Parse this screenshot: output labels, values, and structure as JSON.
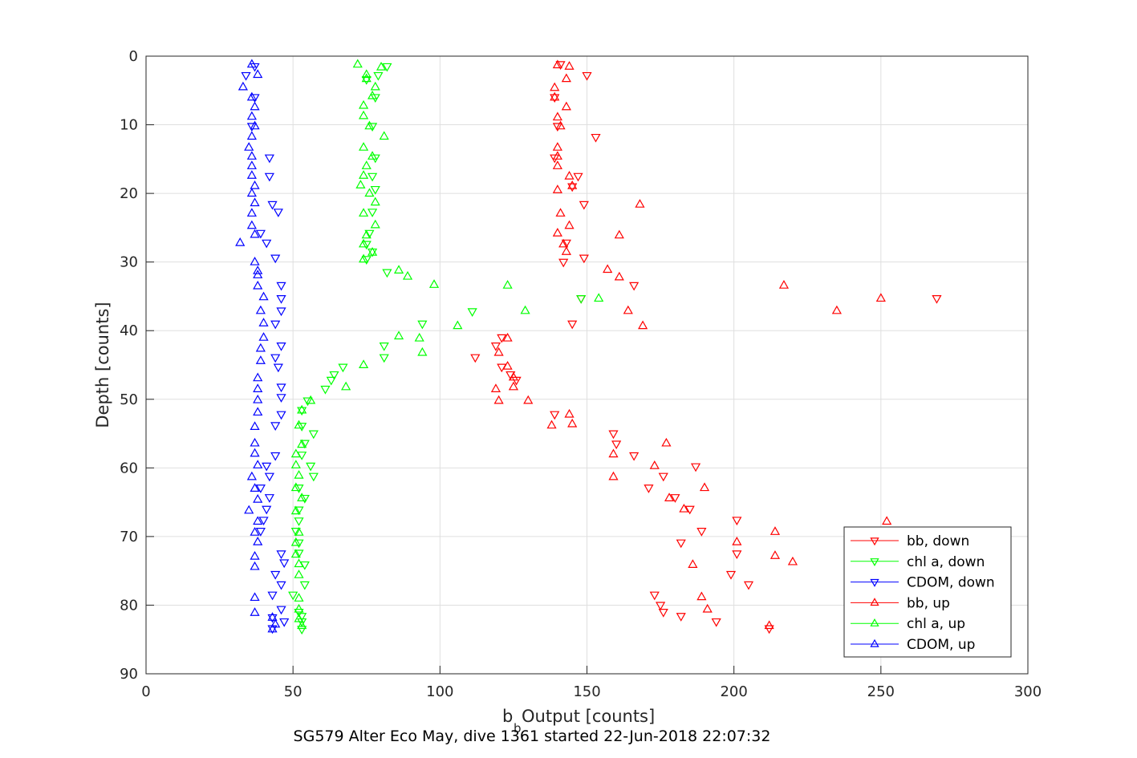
{
  "chart_data": {
    "type": "scatter",
    "title": "SG579 Alter Eco May, dive 1361 started 22-Jun-2018 22:07:32",
    "xlabel_main": "b",
    "xlabel_sub": "b",
    "xlabel_rest": " Output [counts]",
    "ylabel": "Depth [counts]",
    "xlim": [
      0,
      300
    ],
    "ylim": [
      0,
      90
    ],
    "y_reversed": true,
    "grid": true,
    "legend_placement": "bottom-right",
    "xticks": [
      "0",
      "50",
      "100",
      "150",
      "200",
      "250",
      "300"
    ],
    "yticks": [
      "0",
      "10",
      "20",
      "30",
      "40",
      "50",
      "60",
      "70",
      "80",
      "90"
    ],
    "series": [
      {
        "name": "bb, down",
        "color": "#ff0000",
        "marker": "triangle-down",
        "points": [
          [
            141,
            1.2
          ],
          [
            150,
            2.8
          ],
          [
            139,
            6.0
          ],
          [
            140,
            10.2
          ],
          [
            153,
            11.8
          ],
          [
            139,
            14.8
          ],
          [
            147,
            17.5
          ],
          [
            145,
            19.0
          ],
          [
            149,
            21.6
          ],
          [
            143,
            27.2
          ],
          [
            149,
            29.4
          ],
          [
            142,
            30.0
          ],
          [
            166,
            33.4
          ],
          [
            269,
            35.3
          ],
          [
            148,
            35.3
          ],
          [
            145,
            39.0
          ],
          [
            121,
            41.0
          ],
          [
            119,
            42.2
          ],
          [
            112,
            43.9
          ],
          [
            121,
            45.3
          ],
          [
            124,
            46.4
          ],
          [
            126,
            47.2
          ],
          [
            139,
            52.2
          ],
          [
            159,
            55.0
          ],
          [
            160,
            56.5
          ],
          [
            166,
            58.2
          ],
          [
            187,
            59.8
          ],
          [
            176,
            61.2
          ],
          [
            171,
            62.9
          ],
          [
            180,
            64.3
          ],
          [
            185,
            66.0
          ],
          [
            201,
            67.6
          ],
          [
            189,
            69.2
          ],
          [
            182,
            70.9
          ],
          [
            201,
            72.5
          ],
          [
            199,
            75.5
          ],
          [
            205,
            77.0
          ],
          [
            173,
            78.5
          ],
          [
            175,
            80.0
          ],
          [
            176,
            81.0
          ],
          [
            182,
            81.6
          ],
          [
            194,
            82.4
          ],
          [
            212,
            83.4
          ]
        ]
      },
      {
        "name": "chl a, down",
        "color": "#00ff00",
        "marker": "triangle-down",
        "points": [
          [
            82,
            1.5
          ],
          [
            79,
            2.8
          ],
          [
            75,
            3.4
          ],
          [
            78,
            6.0
          ],
          [
            77,
            10.2
          ],
          [
            78,
            14.8
          ],
          [
            77,
            17.5
          ],
          [
            78,
            19.4
          ],
          [
            77,
            22.7
          ],
          [
            76,
            25.8
          ],
          [
            75,
            27.4
          ],
          [
            77,
            28.5
          ],
          [
            75,
            29.6
          ],
          [
            82,
            31.5
          ],
          [
            148,
            35.3
          ],
          [
            111,
            37.2
          ],
          [
            94,
            39.0
          ],
          [
            81,
            42.2
          ],
          [
            81,
            43.9
          ],
          [
            67,
            45.3
          ],
          [
            64,
            46.4
          ],
          [
            63,
            47.2
          ],
          [
            61,
            48.5
          ],
          [
            55,
            50.2
          ],
          [
            53,
            51.6
          ],
          [
            53,
            53.9
          ],
          [
            57,
            55.0
          ],
          [
            54,
            56.4
          ],
          [
            53,
            58.1
          ],
          [
            56,
            59.7
          ],
          [
            57,
            61.2
          ],
          [
            52,
            62.9
          ],
          [
            54,
            64.4
          ],
          [
            52,
            66.1
          ],
          [
            52,
            67.7
          ],
          [
            51,
            69.2
          ],
          [
            52,
            70.9
          ],
          [
            52,
            72.4
          ],
          [
            54,
            74.1
          ],
          [
            54,
            77.0
          ],
          [
            50,
            78.5
          ],
          [
            52,
            81.0
          ],
          [
            53,
            81.6
          ],
          [
            53,
            82.4
          ],
          [
            53,
            83.5
          ]
        ]
      },
      {
        "name": "CDOM, down",
        "color": "#0000ff",
        "marker": "triangle-down",
        "points": [
          [
            37,
            1.5
          ],
          [
            34,
            2.8
          ],
          [
            37,
            6.0
          ],
          [
            36,
            10.2
          ],
          [
            42,
            14.8
          ],
          [
            42,
            17.5
          ],
          [
            43,
            21.6
          ],
          [
            45,
            22.7
          ],
          [
            39,
            25.8
          ],
          [
            41,
            27.2
          ],
          [
            44,
            29.4
          ],
          [
            46,
            33.4
          ],
          [
            46,
            35.3
          ],
          [
            46,
            37.1
          ],
          [
            44,
            39.0
          ],
          [
            46,
            42.2
          ],
          [
            44,
            43.9
          ],
          [
            45,
            45.3
          ],
          [
            46,
            48.2
          ],
          [
            46,
            49.7
          ],
          [
            46,
            52.2
          ],
          [
            44,
            53.8
          ],
          [
            44,
            58.2
          ],
          [
            41,
            59.7
          ],
          [
            42,
            61.2
          ],
          [
            39,
            62.9
          ],
          [
            42,
            64.3
          ],
          [
            41,
            66.0
          ],
          [
            40,
            67.6
          ],
          [
            39,
            69.2
          ],
          [
            46,
            72.5
          ],
          [
            47,
            73.8
          ],
          [
            44,
            75.5
          ],
          [
            46,
            77.0
          ],
          [
            43,
            78.5
          ],
          [
            46,
            80.6
          ],
          [
            43,
            81.8
          ],
          [
            47,
            82.4
          ],
          [
            43,
            83.4
          ]
        ]
      },
      {
        "name": "bb, up",
        "color": "#ff0000",
        "marker": "triangle-up",
        "points": [
          [
            140,
            1.3
          ],
          [
            144,
            1.5
          ],
          [
            143,
            3.3
          ],
          [
            139,
            4.6
          ],
          [
            139,
            6.0
          ],
          [
            143,
            7.4
          ],
          [
            140,
            8.9
          ],
          [
            141,
            10.2
          ],
          [
            140,
            13.3
          ],
          [
            140,
            14.6
          ],
          [
            140,
            16.0
          ],
          [
            144,
            17.5
          ],
          [
            145,
            18.9
          ],
          [
            140,
            19.5
          ],
          [
            168,
            21.6
          ],
          [
            141,
            22.9
          ],
          [
            144,
            24.7
          ],
          [
            161,
            26.1
          ],
          [
            140,
            25.8
          ],
          [
            142,
            27.4
          ],
          [
            143,
            28.5
          ],
          [
            157,
            31.1
          ],
          [
            161,
            32.2
          ],
          [
            217,
            33.4
          ],
          [
            250,
            35.3
          ],
          [
            235,
            37.1
          ],
          [
            164,
            37.1
          ],
          [
            169,
            39.3
          ],
          [
            123,
            41.1
          ],
          [
            120,
            43.2
          ],
          [
            123,
            45.2
          ],
          [
            125,
            46.8
          ],
          [
            125,
            48.2
          ],
          [
            119,
            48.5
          ],
          [
            120,
            50.2
          ],
          [
            130,
            50.2
          ],
          [
            144,
            52.2
          ],
          [
            145,
            53.6
          ],
          [
            138,
            53.8
          ],
          [
            177,
            56.4
          ],
          [
            159,
            58.0
          ],
          [
            173,
            59.7
          ],
          [
            159,
            61.3
          ],
          [
            190,
            62.9
          ],
          [
            178,
            64.4
          ],
          [
            183,
            66.0
          ],
          [
            252,
            67.8
          ],
          [
            214,
            69.3
          ],
          [
            201,
            70.8
          ],
          [
            214,
            72.8
          ],
          [
            186,
            74.1
          ],
          [
            220,
            73.7
          ],
          [
            189,
            78.8
          ],
          [
            191,
            80.6
          ],
          [
            212,
            83.0
          ]
        ]
      },
      {
        "name": "chl a, up",
        "color": "#00ff00",
        "marker": "triangle-up",
        "points": [
          [
            72,
            1.2
          ],
          [
            80,
            1.6
          ],
          [
            75,
            2.7
          ],
          [
            75,
            3.3
          ],
          [
            78,
            4.5
          ],
          [
            77,
            5.8
          ],
          [
            74,
            7.2
          ],
          [
            74,
            8.7
          ],
          [
            76,
            10.2
          ],
          [
            81,
            11.7
          ],
          [
            74,
            13.3
          ],
          [
            77,
            14.6
          ],
          [
            75,
            16.0
          ],
          [
            74,
            17.4
          ],
          [
            73,
            18.8
          ],
          [
            76,
            20.0
          ],
          [
            78,
            21.3
          ],
          [
            74,
            22.9
          ],
          [
            78,
            24.6
          ],
          [
            75,
            26.1
          ],
          [
            74,
            27.4
          ],
          [
            77,
            28.6
          ],
          [
            74,
            29.6
          ],
          [
            86,
            31.2
          ],
          [
            89,
            32.1
          ],
          [
            98,
            33.3
          ],
          [
            123,
            33.4
          ],
          [
            154,
            35.3
          ],
          [
            129,
            37.1
          ],
          [
            106,
            39.3
          ],
          [
            93,
            41.1
          ],
          [
            86,
            40.8
          ],
          [
            94,
            43.2
          ],
          [
            74,
            45.0
          ],
          [
            68,
            48.2
          ],
          [
            56,
            50.2
          ],
          [
            53,
            51.6
          ],
          [
            52,
            53.8
          ],
          [
            53,
            56.6
          ],
          [
            51,
            58.0
          ],
          [
            51,
            59.6
          ],
          [
            52,
            61.1
          ],
          [
            51,
            62.9
          ],
          [
            53,
            64.4
          ],
          [
            51,
            66.3
          ],
          [
            52,
            69.4
          ],
          [
            51,
            70.9
          ],
          [
            51,
            72.6
          ],
          [
            52,
            74.0
          ],
          [
            52,
            75.6
          ],
          [
            52,
            79.0
          ],
          [
            52,
            80.6
          ],
          [
            52,
            82.0
          ],
          [
            53,
            83.0
          ]
        ]
      },
      {
        "name": "CDOM, up",
        "color": "#0000ff",
        "marker": "triangle-up",
        "points": [
          [
            36,
            1.2
          ],
          [
            38,
            2.7
          ],
          [
            33,
            4.5
          ],
          [
            36,
            6.0
          ],
          [
            37,
            7.4
          ],
          [
            36,
            8.8
          ],
          [
            37,
            10.2
          ],
          [
            36,
            11.7
          ],
          [
            35,
            13.3
          ],
          [
            36,
            14.6
          ],
          [
            36,
            16.0
          ],
          [
            36,
            17.4
          ],
          [
            37,
            18.9
          ],
          [
            36,
            20.0
          ],
          [
            37,
            21.4
          ],
          [
            36,
            22.9
          ],
          [
            36,
            24.7
          ],
          [
            37,
            26.0
          ],
          [
            32,
            27.2
          ],
          [
            37,
            30.0
          ],
          [
            38,
            31.3
          ],
          [
            38,
            31.9
          ],
          [
            38,
            33.5
          ],
          [
            40,
            35.1
          ],
          [
            39,
            37.1
          ],
          [
            40,
            38.9
          ],
          [
            40,
            41.0
          ],
          [
            39,
            42.6
          ],
          [
            39,
            44.4
          ],
          [
            38,
            46.9
          ],
          [
            38,
            48.5
          ],
          [
            38,
            50.1
          ],
          [
            38,
            51.9
          ],
          [
            37,
            54.0
          ],
          [
            37,
            56.4
          ],
          [
            37,
            57.9
          ],
          [
            38,
            59.6
          ],
          [
            36,
            61.3
          ],
          [
            37,
            63.0
          ],
          [
            38,
            64.6
          ],
          [
            35,
            66.2
          ],
          [
            38,
            67.8
          ],
          [
            37,
            69.4
          ],
          [
            38,
            70.8
          ],
          [
            37,
            72.9
          ],
          [
            37,
            74.4
          ],
          [
            37,
            78.9
          ],
          [
            37,
            81.1
          ],
          [
            43,
            81.8
          ],
          [
            44,
            82.8
          ],
          [
            43,
            83.5
          ]
        ]
      }
    ]
  }
}
